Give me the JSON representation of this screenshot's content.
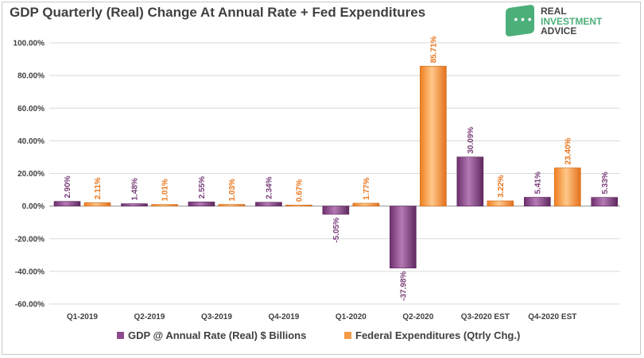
{
  "brand": {
    "name_line1": "REAL",
    "name_line2": "INVESTMENT",
    "name_line3": "ADVICE",
    "icon": "chat-bubble-icon",
    "color": "#4caf7a"
  },
  "chart_data": {
    "type": "bar",
    "title": "GDP Quarterly (Real) Change At Annual Rate + Fed Expenditures",
    "categories": [
      "Q1-2019",
      "Q2-2019",
      "Q3-2019",
      "Q4-2019",
      "Q1-2020",
      "Q2-2020",
      "Q3-2020 EST",
      "Q4-2020 EST"
    ],
    "series": [
      {
        "name": "GDP @ Annual Rate (Real) $ Billions",
        "color": "#8e4a8e",
        "label_color": "#7a3f7a",
        "values": [
          2.9,
          1.48,
          2.55,
          2.34,
          -5.05,
          -37.98,
          30.09,
          5.41
        ],
        "labels": [
          "2.90%",
          "1.48%",
          "2.55%",
          "2.34%",
          "-5.05%",
          "-37.98%",
          "30.09%",
          "5.41%"
        ]
      },
      {
        "name": "Federal Expenditures (Qtrly Chg.)",
        "color": "#f79a46",
        "label_color": "#e8761e",
        "values": [
          2.11,
          1.01,
          1.03,
          0.67,
          1.77,
          85.71,
          3.22,
          23.4
        ],
        "labels": [
          "2.11%",
          "1.01%",
          "1.03%",
          "0.67%",
          "1.77%",
          "85.71%",
          "3.22%",
          "23.40%"
        ]
      }
    ],
    "trailing_series_point": {
      "series": "GDP @ Annual Rate (Real) $ Billions",
      "value": 5.33,
      "label": "5.33%"
    },
    "ylim": [
      -60,
      100
    ],
    "yticks": [
      -60,
      -40,
      -20,
      0,
      20,
      40,
      60,
      80,
      100
    ],
    "ytick_labels": [
      "-60.00%",
      "-40.00%",
      "-20.00%",
      "0.00%",
      "20.00%",
      "40.00%",
      "60.00%",
      "80.00%",
      "100.00%"
    ],
    "grid": true,
    "legend_position": "bottom"
  }
}
